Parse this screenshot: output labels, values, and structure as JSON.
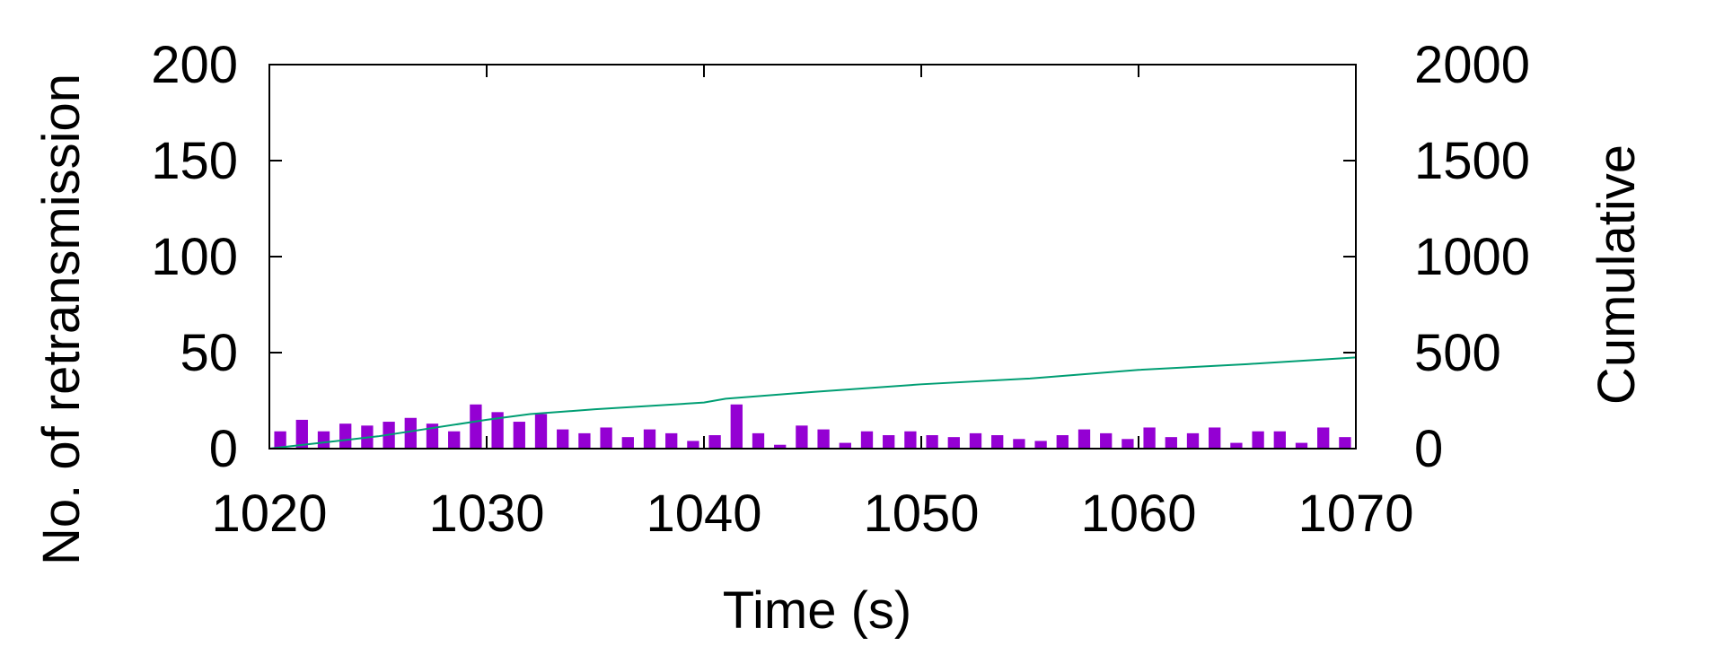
{
  "chart_data": {
    "type": "bar",
    "title": "",
    "xlabel": "Time (s)",
    "ylabel": "No. of retransmission",
    "y2label": "Cumulative",
    "xlim": [
      1020,
      1070
    ],
    "ylim": [
      0,
      200
    ],
    "y2lim": [
      0,
      2000
    ],
    "xticks": [
      "1020",
      "1030",
      "1040",
      "1050",
      "1060",
      "1070"
    ],
    "yticks": [
      "0",
      "50",
      "100",
      "150",
      "200"
    ],
    "y2ticks": [
      "0",
      "500",
      "1000",
      "1500",
      "2000"
    ],
    "grid": false,
    "legend": "none",
    "colors": {
      "bars": "#9400d3",
      "cumulative": "#009e73",
      "axes": "#000000"
    },
    "series": [
      {
        "type": "bar",
        "axis": "left",
        "x": [
          1020,
          1021,
          1022,
          1023,
          1024,
          1025,
          1026,
          1027,
          1028,
          1029,
          1030,
          1031,
          1032,
          1033,
          1034,
          1035,
          1036,
          1037,
          1038,
          1039,
          1040,
          1041,
          1042,
          1043,
          1044,
          1045,
          1046,
          1047,
          1048,
          1049,
          1050,
          1051,
          1052,
          1053,
          1054,
          1055,
          1056,
          1057,
          1058,
          1059,
          1060,
          1061,
          1062,
          1063,
          1064,
          1065,
          1066,
          1067,
          1068,
          1069
        ],
        "values": [
          9,
          15,
          9,
          13,
          12,
          14,
          16,
          13,
          9,
          23,
          19,
          14,
          18,
          10,
          8,
          11,
          6,
          10,
          8,
          4,
          7,
          23,
          8,
          2,
          12,
          10,
          3,
          9,
          7,
          9,
          7,
          6,
          8,
          7,
          5,
          4,
          7,
          10,
          8,
          5,
          11,
          6,
          8,
          11,
          3,
          9,
          9,
          3,
          11,
          6
        ]
      },
      {
        "type": "line",
        "axis": "right",
        "x": [
          1020,
          1025,
          1030,
          1032,
          1035,
          1040,
          1041,
          1045,
          1050,
          1055,
          1060,
          1065,
          1070
        ],
        "values": [
          0,
          64,
          150,
          180,
          205,
          240,
          260,
          295,
          335,
          365,
          410,
          440,
          475
        ]
      }
    ]
  }
}
